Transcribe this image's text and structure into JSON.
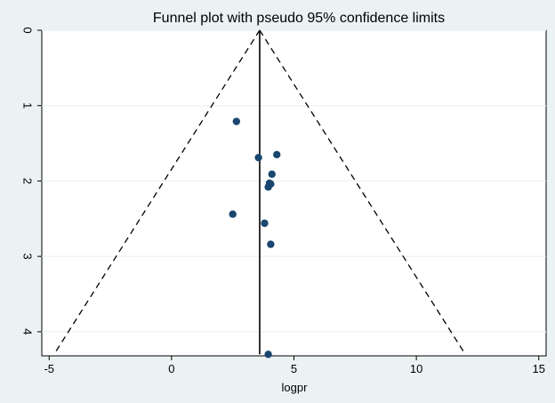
{
  "chart_data": {
    "type": "scatter",
    "title": "Funnel plot with pseudo 95% confidence limits",
    "xlabel": "logpr",
    "ylabel": "",
    "xlim": [
      -5.3,
      15.3
    ],
    "ylim": [
      0,
      4.32
    ],
    "y_reversed": true,
    "x_ticks": [
      -5,
      0,
      5,
      10,
      15
    ],
    "y_ticks": [
      0,
      1,
      2,
      3,
      4
    ],
    "grid": true,
    "series": [
      {
        "points": [
          {
            "x": 2.65,
            "y": 1.21
          },
          {
            "x": 4.3,
            "y": 1.65
          },
          {
            "x": 3.55,
            "y": 1.69
          },
          {
            "x": 4.1,
            "y": 1.91
          },
          {
            "x": 4.0,
            "y": 2.03
          },
          {
            "x": 4.05,
            "y": 2.04
          },
          {
            "x": 3.95,
            "y": 2.08
          },
          {
            "x": 2.5,
            "y": 2.44
          },
          {
            "x": 3.8,
            "y": 2.56
          },
          {
            "x": 4.05,
            "y": 2.84
          },
          {
            "x": 3.95,
            "y": 4.3
          }
        ],
        "color": "#1a476f"
      }
    ],
    "reference_line": {
      "x": 3.6,
      "y_from": 0,
      "y_to": 4.3
    },
    "confidence_limits": {
      "apex": {
        "x": 3.6,
        "y": 0
      },
      "left_end": {
        "x": -4.8,
        "y": 4.3
      },
      "right_end": {
        "x": 12.0,
        "y": 4.3
      }
    },
    "colors": {
      "background": "#eaf2f3",
      "plot_area": "#ffffff",
      "grid": "#eaf2f3",
      "marker": "#1a476f",
      "line": "#000000"
    }
  }
}
